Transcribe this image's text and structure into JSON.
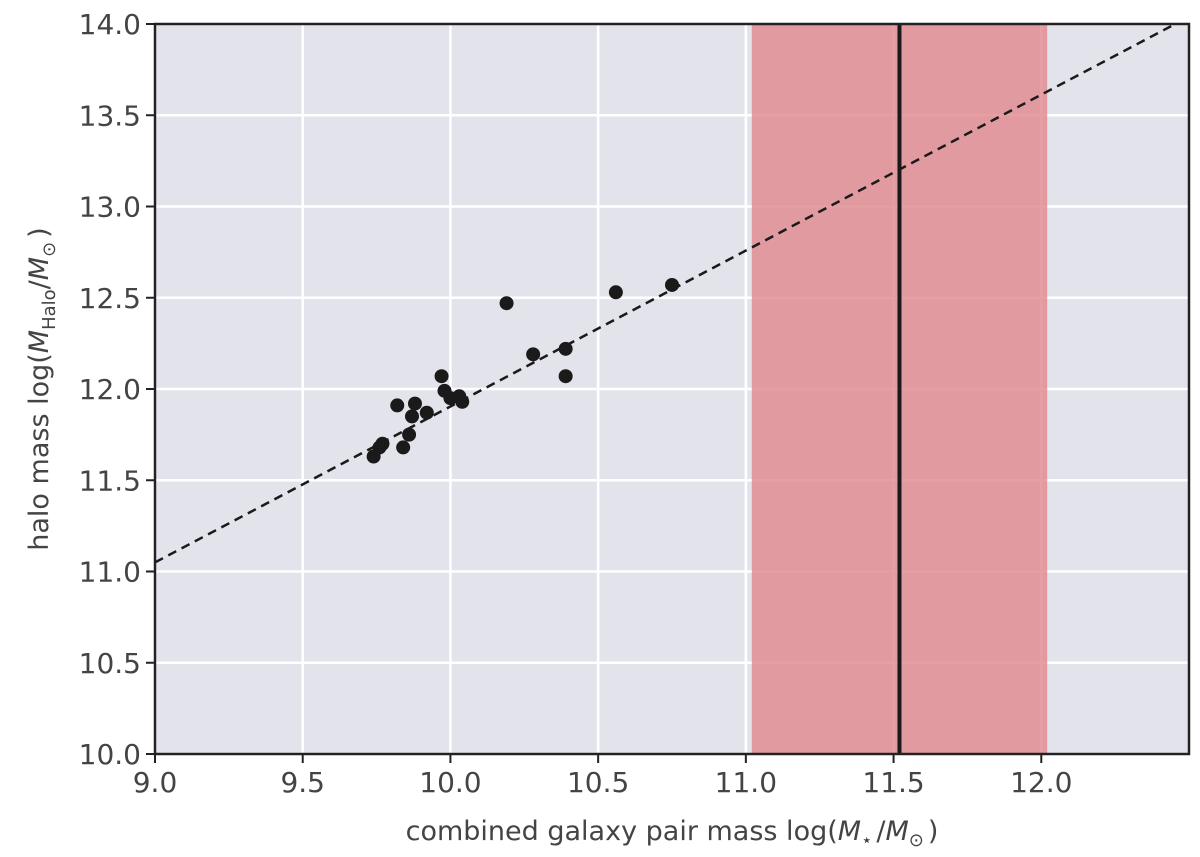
{
  "chart_data": {
    "type": "scatter",
    "title": "",
    "xlabel": {
      "prefix": "combined galaxy pair mass log(",
      "sym1": "M",
      "sub1": "⋆",
      "slash": "/",
      "sym2": "M",
      "sub2": "⊙",
      "suffix": ")"
    },
    "ylabel": {
      "prefix": "halo mass log(",
      "sym1": "M",
      "sub1": "Halo",
      "slash": "/",
      "sym2": "M",
      "sub2": "⊙",
      "suffix": ")"
    },
    "xlim": [
      9.0,
      12.5
    ],
    "ylim": [
      10.0,
      14.0
    ],
    "x_ticks": [
      "9.0",
      "9.5",
      "10.0",
      "10.5",
      "11.0",
      "11.5",
      "12.0"
    ],
    "y_ticks": [
      "10.0",
      "10.5",
      "11.0",
      "11.5",
      "12.0",
      "12.5",
      "13.0",
      "13.5",
      "14.0"
    ],
    "grid": true,
    "background_color": "#e3e3ec",
    "points": [
      {
        "x": 9.74,
        "y": 11.63
      },
      {
        "x": 9.76,
        "y": 11.68
      },
      {
        "x": 9.77,
        "y": 11.7
      },
      {
        "x": 9.82,
        "y": 11.91
      },
      {
        "x": 9.84,
        "y": 11.68
      },
      {
        "x": 9.86,
        "y": 11.75
      },
      {
        "x": 9.87,
        "y": 11.85
      },
      {
        "x": 9.88,
        "y": 11.92
      },
      {
        "x": 9.92,
        "y": 11.87
      },
      {
        "x": 9.97,
        "y": 12.07
      },
      {
        "x": 9.98,
        "y": 11.99
      },
      {
        "x": 10.0,
        "y": 11.95
      },
      {
        "x": 10.03,
        "y": 11.96
      },
      {
        "x": 10.04,
        "y": 11.93
      },
      {
        "x": 10.19,
        "y": 12.47
      },
      {
        "x": 10.28,
        "y": 12.19
      },
      {
        "x": 10.39,
        "y": 12.22
      },
      {
        "x": 10.39,
        "y": 12.07
      },
      {
        "x": 10.56,
        "y": 12.53
      },
      {
        "x": 10.75,
        "y": 12.57
      }
    ],
    "point_color": "#1a1a1a",
    "fit_line": {
      "style": "dashed",
      "color": "#1a1a1a",
      "x": [
        9.0,
        12.5
      ],
      "y": [
        11.05,
        14.04
      ]
    },
    "vertical_line": {
      "x": 11.52,
      "color": "#1a1a1a"
    },
    "shaded_band": {
      "x_range": [
        11.02,
        12.02
      ],
      "color": "#e0878c",
      "opacity": 0.8
    }
  }
}
